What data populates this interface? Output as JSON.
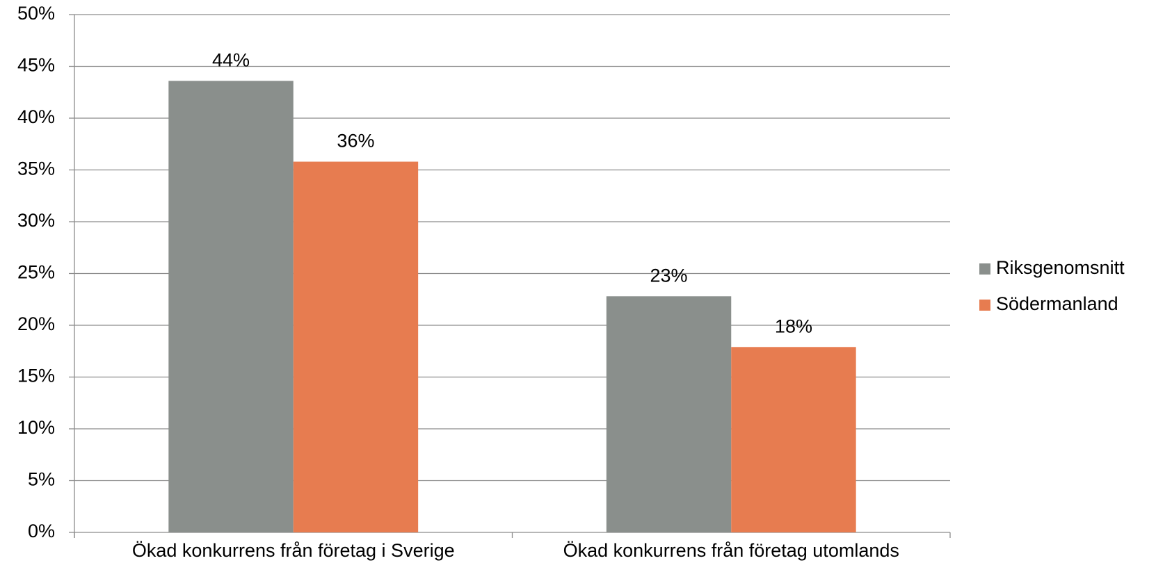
{
  "chart_data": {
    "type": "bar",
    "categories": [
      "Ökad konkurrens från företag i Sverige",
      "Ökad konkurrens från företag utomlands"
    ],
    "series": [
      {
        "name": "Riksgenomsnitt",
        "color": "#8a8f8c",
        "values": [
          43.6,
          22.8
        ],
        "value_labels": [
          "44%",
          "23%"
        ]
      },
      {
        "name": "Södermanland",
        "color": "#e77c50",
        "values": [
          35.8,
          17.9
        ],
        "value_labels": [
          "36%",
          "18%"
        ]
      }
    ],
    "ylim": [
      0,
      50
    ],
    "yticks": [
      {
        "value": 0,
        "label": "0%"
      },
      {
        "value": 5,
        "label": "5%"
      },
      {
        "value": 10,
        "label": "10%"
      },
      {
        "value": 15,
        "label": "15%"
      },
      {
        "value": 20,
        "label": "20%"
      },
      {
        "value": 25,
        "label": "25%"
      },
      {
        "value": 30,
        "label": "30%"
      },
      {
        "value": 35,
        "label": "35%"
      },
      {
        "value": 40,
        "label": "40%"
      },
      {
        "value": 45,
        "label": "45%"
      },
      {
        "value": 50,
        "label": "50%"
      }
    ],
    "grid": true,
    "legend": "right"
  }
}
